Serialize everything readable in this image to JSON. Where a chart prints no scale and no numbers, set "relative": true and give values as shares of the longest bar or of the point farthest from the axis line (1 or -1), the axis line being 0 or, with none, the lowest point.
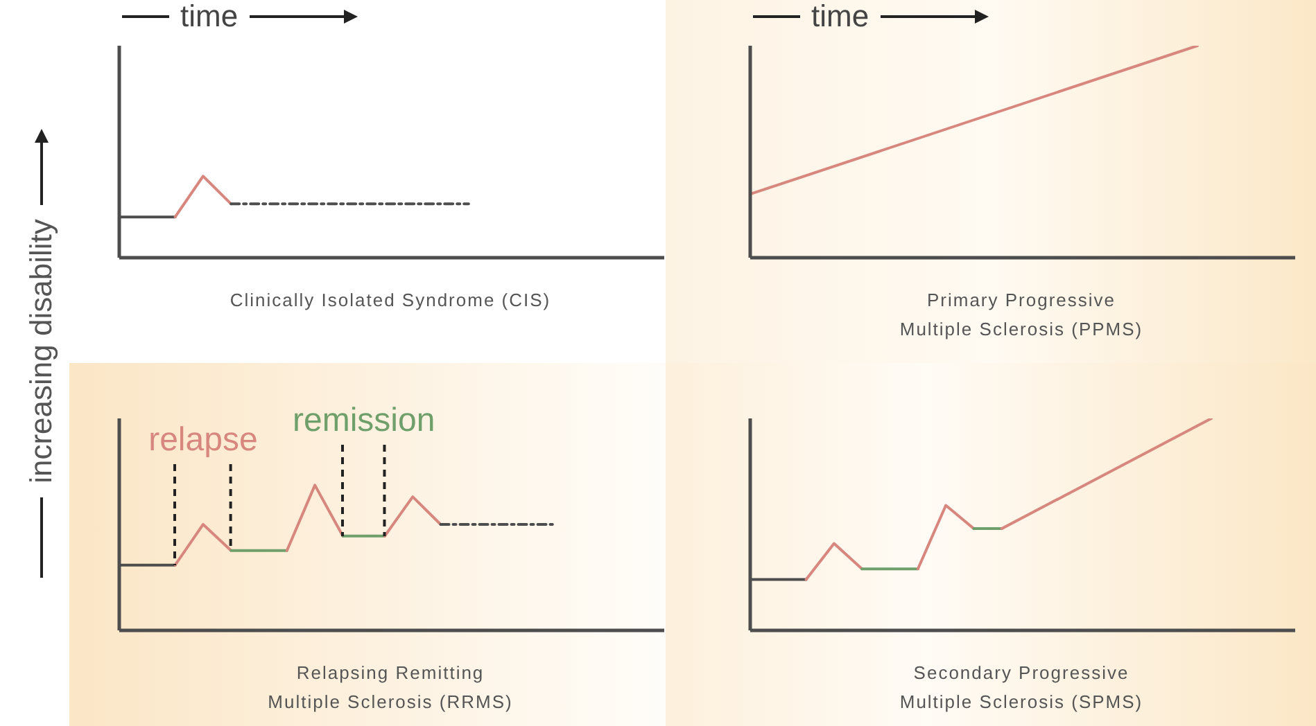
{
  "chart_data": [
    {
      "type": "line",
      "relative": true,
      "ylabel": "increasing disability",
      "annotations": [
        "time"
      ],
      "xlabel": "Clinically Isolated Syndrome (CIS)",
      "categories": [
        null,
        null,
        null,
        null,
        null,
        null,
        null,
        null,
        null,
        null,
        null,
        null,
        null,
        null,
        null,
        null,
        null,
        null,
        null,
        null,
        null,
        null,
        null,
        null,
        null,
        null,
        null,
        null,
        null,
        null,
        null,
        null,
        null,
        null,
        null,
        null,
        null,
        null,
        null,
        null
      ],
      "series": [
        {
          "color": "#4d4d4d",
          "values": [
            0.5,
            null,
            null,
            null,
            0.5,
            null,
            null,
            null,
            null,
            null,
            null,
            null,
            null,
            null,
            null,
            null,
            null,
            null,
            null,
            null,
            null,
            null,
            null,
            null,
            null,
            null,
            null,
            null,
            null,
            null,
            null,
            null,
            null,
            null,
            null,
            null,
            null,
            null,
            null,
            null
          ]
        },
        {
          "color": "#d7877e",
          "values": [
            null,
            null,
            null,
            null,
            0.5,
            null,
            1,
            null,
            0.66,
            null,
            null,
            null,
            null,
            null,
            null,
            null,
            null,
            null,
            null,
            null,
            null,
            null,
            null,
            null,
            null,
            null,
            null,
            null,
            null,
            null,
            null,
            null,
            null,
            null,
            null,
            null,
            null,
            null,
            null,
            null
          ]
        },
        {
          "color": "#4d4d4d",
          "line_style": "dashed",
          "values": [
            null,
            null,
            null,
            null,
            null,
            null,
            null,
            null,
            0.66,
            null,
            null,
            null,
            null,
            null,
            null,
            null,
            null,
            null,
            null,
            null,
            null,
            null,
            null,
            null,
            null,
            0.66,
            null,
            null,
            null,
            null,
            null,
            null,
            null,
            null,
            null,
            null,
            null,
            null,
            null,
            null
          ]
        }
      ]
    },
    {
      "type": "line",
      "relative": true,
      "annotations": [
        "time"
      ],
      "xlabel": "Primary Progressive\nMultiple Sclerosis (PPMS)",
      "categories": [
        null,
        null,
        null,
        null,
        null,
        null,
        null,
        null,
        null,
        null,
        null,
        null,
        null,
        null,
        null,
        null,
        null,
        null,
        null,
        null,
        null,
        null,
        null,
        null,
        null,
        null,
        null,
        null,
        null,
        null,
        null,
        null,
        null,
        null,
        null,
        null,
        null,
        null,
        null,
        null
      ],
      "series": [
        {
          "color": "#d7877e",
          "values": [
            0.3,
            null,
            null,
            null,
            null,
            null,
            null,
            null,
            null,
            null,
            null,
            null,
            null,
            null,
            null,
            null,
            null,
            null,
            null,
            null,
            null,
            null,
            null,
            null,
            null,
            null,
            null,
            null,
            null,
            null,
            null,
            null,
            1,
            null,
            null,
            null,
            null,
            null,
            null,
            null
          ]
        }
      ]
    },
    {
      "type": "line",
      "relative": true,
      "xlabel": "Relapsing Remitting\nMultiple Sclerosis (RRMS)",
      "categories": [
        null,
        null,
        null,
        null,
        null,
        null,
        null,
        null,
        null,
        null,
        null,
        null,
        null,
        null,
        null,
        null,
        null,
        null,
        null,
        null,
        null,
        null,
        null,
        null,
        null,
        null,
        null,
        null,
        null,
        null,
        null,
        null,
        null,
        null,
        null,
        null,
        null,
        null,
        null,
        null
      ],
      "series": [
        {
          "color": "#4d4d4d",
          "values": [
            0.45,
            null,
            null,
            null,
            0.45,
            null,
            null,
            null,
            null,
            null,
            null,
            null,
            null,
            null,
            null,
            null,
            null,
            null,
            null,
            null,
            null,
            null,
            null,
            null,
            null,
            null,
            null,
            null,
            null,
            null,
            null,
            null,
            null,
            null,
            null,
            null,
            null,
            null,
            null,
            null
          ]
        },
        {
          "name": "relapse",
          "color": "#d7877e",
          "values": [
            null,
            null,
            null,
            null,
            0.45,
            null,
            0.73,
            null,
            0.55,
            null,
            null,
            null,
            null,
            null,
            null,
            null,
            null,
            null,
            null,
            null,
            null,
            null,
            null,
            null,
            null,
            null,
            null,
            null,
            null,
            null,
            null,
            null,
            null,
            null,
            null,
            null,
            null,
            null,
            null,
            null
          ]
        },
        {
          "color": "#6f9f6a",
          "values": [
            null,
            null,
            null,
            null,
            null,
            null,
            null,
            null,
            0.55,
            null,
            null,
            null,
            0.55,
            null,
            null,
            null,
            null,
            null,
            null,
            null,
            null,
            null,
            null,
            null,
            null,
            null,
            null,
            null,
            null,
            null,
            null,
            null,
            null,
            null,
            null,
            null,
            null,
            null,
            null,
            null
          ]
        },
        {
          "color": "#d7877e",
          "values": [
            null,
            null,
            null,
            null,
            null,
            null,
            null,
            null,
            null,
            null,
            null,
            null,
            0.55,
            null,
            1,
            null,
            0.65,
            null,
            null,
            null,
            null,
            null,
            null,
            null,
            null,
            null,
            null,
            null,
            null,
            null,
            null,
            null,
            null,
            null,
            null,
            null,
            null,
            null,
            null,
            null
          ]
        },
        {
          "name": "remission",
          "color": "#6f9f6a",
          "values": [
            null,
            null,
            null,
            null,
            null,
            null,
            null,
            null,
            null,
            null,
            null,
            null,
            null,
            null,
            null,
            null,
            0.65,
            null,
            null,
            0.65,
            null,
            null,
            null,
            null,
            null,
            null,
            null,
            null,
            null,
            null,
            null,
            null,
            null,
            null,
            null,
            null,
            null,
            null,
            null,
            null
          ]
        },
        {
          "color": "#d7877e",
          "values": [
            null,
            null,
            null,
            null,
            null,
            null,
            null,
            null,
            null,
            null,
            null,
            null,
            null,
            null,
            null,
            null,
            null,
            null,
            null,
            0.65,
            null,
            0.92,
            null,
            0.73,
            null,
            null,
            null,
            null,
            null,
            null,
            null,
            null,
            null,
            null,
            null,
            null,
            null,
            null,
            null,
            null
          ]
        },
        {
          "color": "#4d4d4d",
          "line_style": "dashed",
          "values": [
            null,
            null,
            null,
            null,
            null,
            null,
            null,
            null,
            null,
            null,
            null,
            null,
            null,
            null,
            null,
            null,
            null,
            null,
            null,
            null,
            null,
            null,
            null,
            0.73,
            null,
            null,
            null,
            null,
            null,
            null,
            null,
            0.73,
            null,
            null,
            null,
            null,
            null,
            null,
            null,
            null
          ]
        }
      ]
    },
    {
      "type": "line",
      "relative": true,
      "xlabel": "Secondary Progressive\nMultiple Sclerosis (SPMS)",
      "categories": [
        null,
        null,
        null,
        null,
        null,
        null,
        null,
        null,
        null,
        null,
        null,
        null,
        null,
        null,
        null,
        null,
        null,
        null,
        null,
        null,
        null,
        null,
        null,
        null,
        null,
        null,
        null,
        null,
        null,
        null,
        null,
        null,
        null,
        null,
        null,
        null,
        null,
        null,
        null,
        null
      ],
      "series": [
        {
          "color": "#4d4d4d",
          "values": [
            0.24,
            null,
            null,
            null,
            0.24,
            null,
            null,
            null,
            null,
            null,
            null,
            null,
            null,
            null,
            null,
            null,
            null,
            null,
            null,
            null,
            null,
            null,
            null,
            null,
            null,
            null,
            null,
            null,
            null,
            null,
            null,
            null,
            null,
            null,
            null,
            null,
            null,
            null,
            null,
            null
          ]
        },
        {
          "color": "#d7877e",
          "values": [
            null,
            null,
            null,
            null,
            0.24,
            null,
            0.41,
            null,
            0.29,
            null,
            null,
            null,
            null,
            null,
            null,
            null,
            null,
            null,
            null,
            null,
            null,
            null,
            null,
            null,
            null,
            null,
            null,
            null,
            null,
            null,
            null,
            null,
            null,
            null,
            null,
            null,
            null,
            null,
            null,
            null
          ]
        },
        {
          "color": "#6f9f6a",
          "values": [
            null,
            null,
            null,
            null,
            null,
            null,
            null,
            null,
            0.29,
            null,
            null,
            null,
            0.29,
            null,
            null,
            null,
            null,
            null,
            null,
            null,
            null,
            null,
            null,
            null,
            null,
            null,
            null,
            null,
            null,
            null,
            null,
            null,
            null,
            null,
            null,
            null,
            null,
            null,
            null,
            null
          ]
        },
        {
          "color": "#d7877e",
          "values": [
            null,
            null,
            null,
            null,
            null,
            null,
            null,
            null,
            null,
            null,
            null,
            null,
            0.29,
            null,
            0.59,
            null,
            0.48,
            null,
            null,
            null,
            null,
            null,
            null,
            null,
            null,
            null,
            null,
            null,
            null,
            null,
            null,
            null,
            null,
            null,
            null,
            null,
            null,
            null,
            null,
            null
          ]
        },
        {
          "color": "#6f9f6a",
          "values": [
            null,
            null,
            null,
            null,
            null,
            null,
            null,
            null,
            null,
            null,
            null,
            null,
            null,
            null,
            null,
            null,
            0.48,
            null,
            0.48,
            null,
            null,
            null,
            null,
            null,
            null,
            null,
            null,
            null,
            null,
            null,
            null,
            null,
            null,
            null,
            null,
            null,
            null,
            null,
            null,
            null
          ]
        },
        {
          "color": "#d7877e",
          "values": [
            null,
            null,
            null,
            null,
            null,
            null,
            null,
            null,
            null,
            null,
            null,
            null,
            null,
            null,
            null,
            null,
            null,
            null,
            0.48,
            null,
            null,
            null,
            null,
            null,
            null,
            null,
            null,
            null,
            null,
            null,
            null,
            null,
            null,
            1,
            null,
            null,
            null,
            null,
            null,
            null
          ]
        }
      ]
    }
  ]
}
